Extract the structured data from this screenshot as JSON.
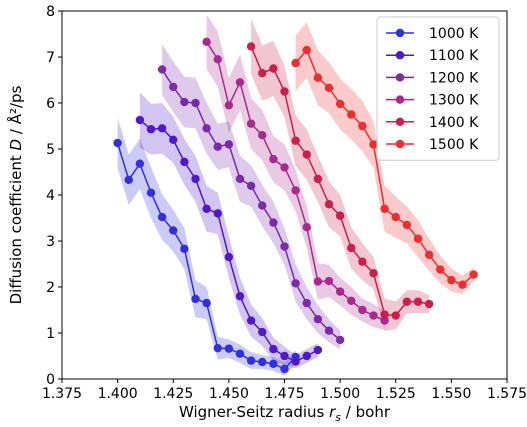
{
  "chart_data": {
    "type": "line",
    "title": "",
    "xlabel": "Wigner-Seitz radius",
    "xlabel_symbol": "r",
    "xlabel_subscript": "s",
    "xlabel_unit": " / bohr",
    "ylabel": "Diffusion coefficient",
    "ylabel_symbol": "D",
    "ylabel_unit": " / Å²/ps",
    "xlim": [
      1.375,
      1.575
    ],
    "ylim": [
      0,
      8
    ],
    "xticks": [
      1.375,
      1.4,
      1.425,
      1.45,
      1.475,
      1.5,
      1.525,
      1.55,
      1.575
    ],
    "xtick_labels": [
      "1.375",
      "1.400",
      "1.425",
      "1.450",
      "1.475",
      "1.500",
      "1.525",
      "1.550",
      "1.575"
    ],
    "yticks": [
      0,
      1,
      2,
      3,
      4,
      5,
      6,
      7,
      8
    ],
    "ytick_labels": [
      "0",
      "1",
      "2",
      "3",
      "4",
      "5",
      "6",
      "7",
      "8"
    ],
    "grid": false,
    "legend_position": "top-right",
    "series": [
      {
        "name": "1000 K",
        "color": "#3030e0",
        "x": [
          1.4,
          1.405,
          1.41,
          1.415,
          1.42,
          1.425,
          1.43,
          1.435,
          1.44,
          1.445,
          1.45,
          1.455,
          1.46,
          1.465,
          1.47,
          1.475,
          1.48
        ],
        "y": [
          5.13,
          4.33,
          4.68,
          4.05,
          3.52,
          3.23,
          2.83,
          1.74,
          1.65,
          0.67,
          0.66,
          0.55,
          0.4,
          0.37,
          0.33,
          0.22,
          0.48
        ],
        "band": [
          0.55,
          0.55,
          0.55,
          0.55,
          0.5,
          0.45,
          0.45,
          0.4,
          0.35,
          0.25,
          0.2,
          0.2,
          0.18,
          0.15,
          0.15,
          0.15,
          0.15
        ]
      },
      {
        "name": "1100 K",
        "color": "#5018cc",
        "x": [
          1.41,
          1.415,
          1.42,
          1.425,
          1.43,
          1.435,
          1.44,
          1.445,
          1.45,
          1.455,
          1.46,
          1.465,
          1.47,
          1.475,
          1.48,
          1.485,
          1.49
        ],
        "y": [
          5.63,
          5.43,
          5.45,
          5.2,
          4.72,
          4.35,
          3.7,
          3.6,
          2.65,
          1.8,
          1.27,
          1.02,
          0.65,
          0.5,
          0.38,
          0.5,
          0.63
        ],
        "band": [
          0.6,
          0.55,
          0.55,
          0.5,
          0.5,
          0.5,
          0.5,
          0.45,
          0.45,
          0.4,
          0.35,
          0.3,
          0.25,
          0.2,
          0.15,
          0.15,
          0.15
        ]
      },
      {
        "name": "1200 K",
        "color": "#7b2aaa",
        "x": [
          1.42,
          1.425,
          1.43,
          1.435,
          1.44,
          1.445,
          1.45,
          1.455,
          1.46,
          1.465,
          1.47,
          1.475,
          1.48,
          1.485,
          1.49,
          1.495,
          1.5
        ],
        "y": [
          6.73,
          6.35,
          6.02,
          6.0,
          5.45,
          5.05,
          5.1,
          4.35,
          4.2,
          3.77,
          3.4,
          2.88,
          2.08,
          1.65,
          1.3,
          1.05,
          0.85
        ],
        "band": [
          0.55,
          0.55,
          0.55,
          0.55,
          0.55,
          0.5,
          0.5,
          0.5,
          0.45,
          0.45,
          0.45,
          0.4,
          0.4,
          0.35,
          0.3,
          0.25,
          0.2
        ]
      },
      {
        "name": "1300 K",
        "color": "#a82a8c",
        "x": [
          1.44,
          1.445,
          1.45,
          1.455,
          1.46,
          1.465,
          1.47,
          1.475,
          1.48,
          1.485,
          1.49,
          1.495,
          1.5,
          1.505,
          1.51,
          1.515,
          1.52
        ],
        "y": [
          7.33,
          6.95,
          5.95,
          6.45,
          5.55,
          5.3,
          4.78,
          4.6,
          4.1,
          3.3,
          2.12,
          2.13,
          1.9,
          1.7,
          1.5,
          1.38,
          1.27
        ],
        "band": [
          0.6,
          0.6,
          0.6,
          0.6,
          0.55,
          0.55,
          0.5,
          0.5,
          0.45,
          0.45,
          0.4,
          0.35,
          0.3,
          0.3,
          0.25,
          0.25,
          0.2
        ]
      },
      {
        "name": "1400 K",
        "color": "#cc1e4c",
        "x": [
          1.46,
          1.465,
          1.47,
          1.475,
          1.48,
          1.485,
          1.49,
          1.495,
          1.5,
          1.505,
          1.51,
          1.515,
          1.52,
          1.525,
          1.53,
          1.535,
          1.54
        ],
        "y": [
          7.23,
          6.65,
          6.75,
          6.25,
          5.18,
          4.88,
          4.35,
          3.8,
          3.55,
          2.85,
          2.55,
          2.3,
          1.4,
          1.38,
          1.68,
          1.68,
          1.63
        ],
        "band": [
          0.6,
          0.6,
          0.6,
          0.55,
          0.55,
          0.55,
          0.5,
          0.5,
          0.45,
          0.45,
          0.4,
          0.35,
          0.35,
          0.3,
          0.25,
          0.25,
          0.2
        ]
      },
      {
        "name": "1500 K",
        "color": "#ee2e2e",
        "x": [
          1.48,
          1.485,
          1.49,
          1.495,
          1.5,
          1.505,
          1.51,
          1.515,
          1.52,
          1.525,
          1.53,
          1.535,
          1.54,
          1.545,
          1.55,
          1.555,
          1.56
        ],
        "y": [
          6.87,
          7.15,
          6.55,
          6.33,
          5.98,
          5.75,
          5.5,
          5.1,
          3.7,
          3.52,
          3.35,
          3.05,
          2.7,
          2.38,
          2.15,
          2.05,
          2.27
        ],
        "band": [
          0.6,
          0.6,
          0.6,
          0.55,
          0.55,
          0.55,
          0.55,
          0.5,
          0.5,
          0.45,
          0.4,
          0.4,
          0.35,
          0.3,
          0.25,
          0.2,
          0.15
        ]
      }
    ]
  }
}
